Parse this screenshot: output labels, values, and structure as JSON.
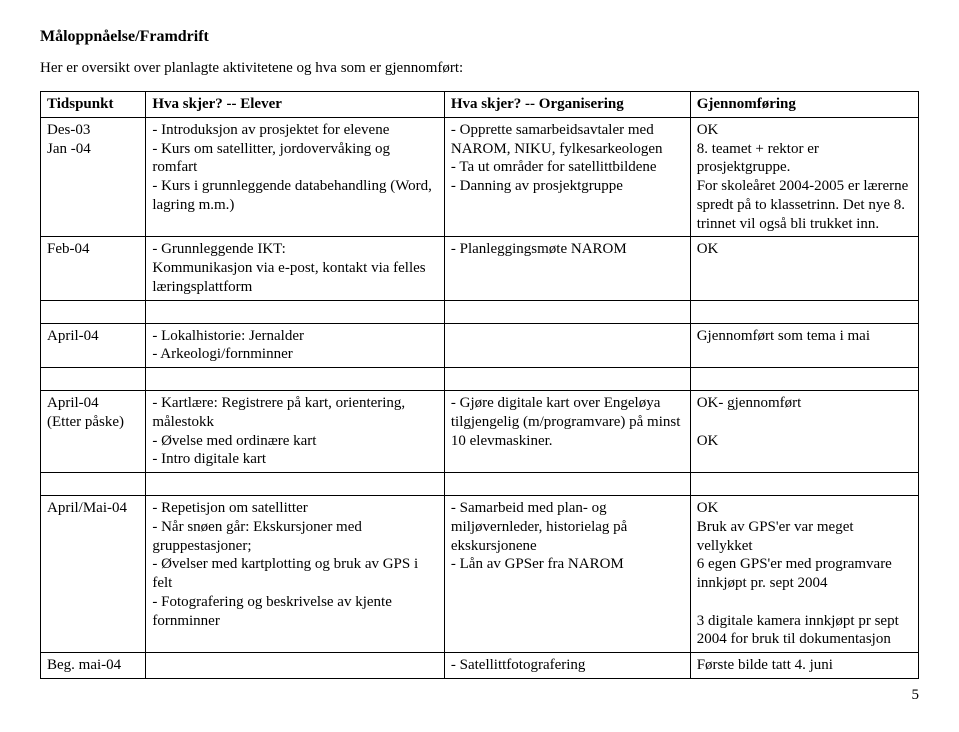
{
  "title": "Måloppnåelse/Framdrift",
  "intro": "Her er oversikt over planlagte aktivitetene og hva som er gjennomført:",
  "headers": {
    "c0": "Tidspunkt",
    "c1": "Hva skjer? -- Elever",
    "c2": "Hva skjer? -- Organisering",
    "c3": "Gjennomføring"
  },
  "rows": {
    "r0": {
      "c0": "Des-03\nJan -04",
      "c1": "- Introduksjon av prosjektet for elevene\n- Kurs om satellitter, jordovervåking og romfart\n- Kurs i grunnleggende databehandling (Word, lagring m.m.)",
      "c2": "- Opprette samarbeidsavtaler med NAROM, NIKU, fylkesarkeologen\n- Ta ut områder for satellittbildene\n- Danning av prosjektgruppe",
      "c3": "OK\n8. teamet + rektor er prosjektgruppe.\nFor skoleåret 2004-2005 er lærerne spredt på to klassetrinn. Det nye 8. trinnet vil også bli trukket inn."
    },
    "r1": {
      "c0": "Feb-04",
      "c1": "- Grunnleggende IKT:\nKommunikasjon via e-post, kontakt via felles læringsplattform",
      "c2": "- Planleggingsmøte NAROM",
      "c3": "OK"
    },
    "r2": {
      "c0": "April-04",
      "c1": "- Lokalhistorie: Jernalder\n- Arkeologi/fornminner",
      "c2": "",
      "c3": "Gjennomført som tema i mai"
    },
    "r3": {
      "c0": "April-04\n(Etter påske)",
      "c1": "- Kartlære: Registrere på kart, orientering, målestokk\n- Øvelse med ordinære kart\n- Intro digitale kart",
      "c2": "- Gjøre digitale kart over Engeløya tilgjengelig (m/programvare) på minst 10 elevmaskiner.",
      "c3": "OK- gjennomført\n\nOK"
    },
    "r4": {
      "c0": "April/Mai-04",
      "c1": "- Repetisjon om satellitter\n- Når snøen går: Ekskursjoner med gruppestasjoner;\n- Øvelser med kartplotting og bruk av GPS i felt\n- Fotografering og beskrivelse av kjente fornminner",
      "c2": "- Samarbeid med plan- og miljøvernleder, historielag på ekskursjonene\n- Lån av GPSer fra NAROM",
      "c3": "OK\nBruk av GPS'er var meget vellykket\n6 egen GPS'er med programvare innkjøpt pr. sept 2004\n\n3 digitale kamera innkjøpt pr sept 2004 for bruk til dokumentasjon"
    },
    "r5": {
      "c0": "Beg. mai-04",
      "c1": "",
      "c2": "- Satellittfotografering",
      "c3": "Første bilde tatt 4. juni"
    }
  },
  "page_number": "5"
}
